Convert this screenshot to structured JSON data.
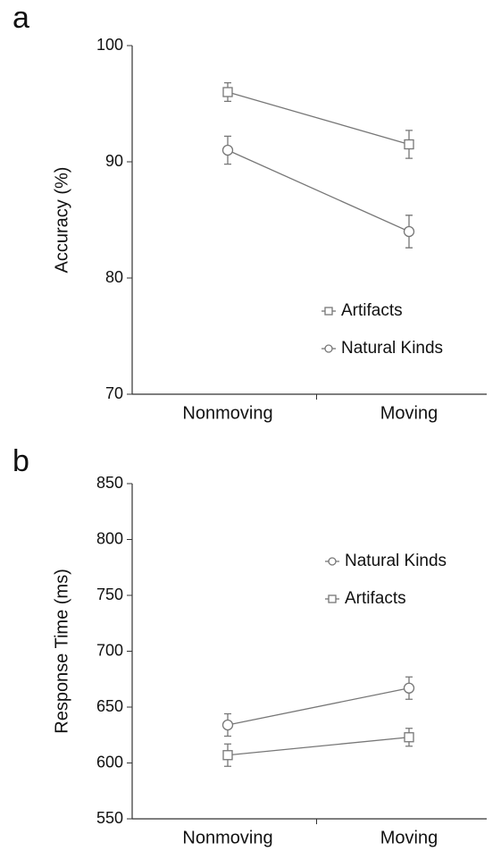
{
  "chart_data": [
    {
      "type": "line",
      "label": "a",
      "ylabel": "Accuracy (%)",
      "categories": [
        "Nonmoving",
        "Moving"
      ],
      "ylim": [
        70,
        100
      ],
      "yticks": [
        70,
        80,
        90,
        100
      ],
      "series": [
        {
          "name": "Artifacts",
          "color": "#777777",
          "marker": "square",
          "values": [
            96,
            91.5
          ],
          "errors": [
            0.8,
            1.2
          ]
        },
        {
          "name": "Natural Kinds",
          "color": "#777777",
          "marker": "circle",
          "values": [
            91,
            84
          ],
          "errors": [
            1.2,
            1.4
          ]
        }
      ]
    },
    {
      "type": "line",
      "label": "b",
      "ylabel": "Response Time (ms)",
      "categories": [
        "Nonmoving",
        "Moving"
      ],
      "ylim": [
        550,
        850
      ],
      "yticks": [
        550,
        600,
        650,
        700,
        750,
        800,
        850
      ],
      "series": [
        {
          "name": "Natural Kinds",
          "color": "#777777",
          "marker": "circle",
          "values": [
            634,
            667
          ],
          "errors": [
            10,
            10
          ]
        },
        {
          "name": "Artifacts",
          "color": "#777777",
          "marker": "square",
          "values": [
            607,
            623
          ],
          "errors": [
            10,
            8
          ]
        }
      ]
    }
  ]
}
